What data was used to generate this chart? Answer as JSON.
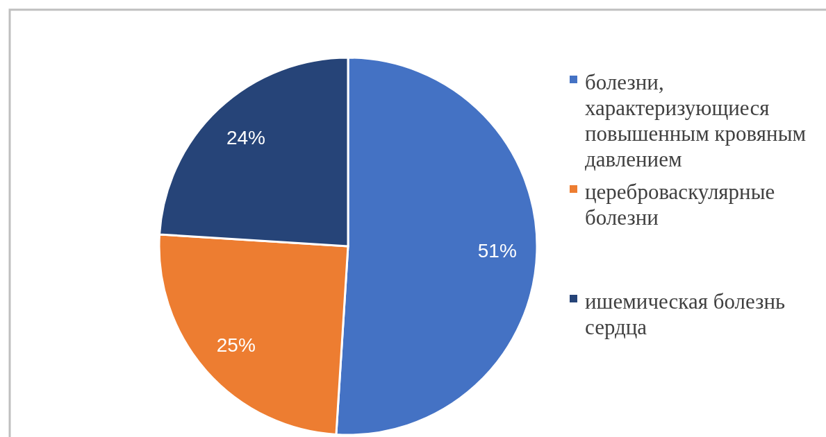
{
  "chart_data": {
    "type": "pie",
    "categories": [
      "болезни, характеризующиеся повышенным кровяным давлением",
      "цереброваскулярные болезни",
      "ишемическая болезнь сердца"
    ],
    "values": [
      51,
      25,
      24
    ],
    "colors": [
      "#4472c4",
      "#ed7d31",
      "#264478"
    ],
    "value_labels": [
      "51%",
      "25%",
      "24%"
    ],
    "legend": "right"
  }
}
